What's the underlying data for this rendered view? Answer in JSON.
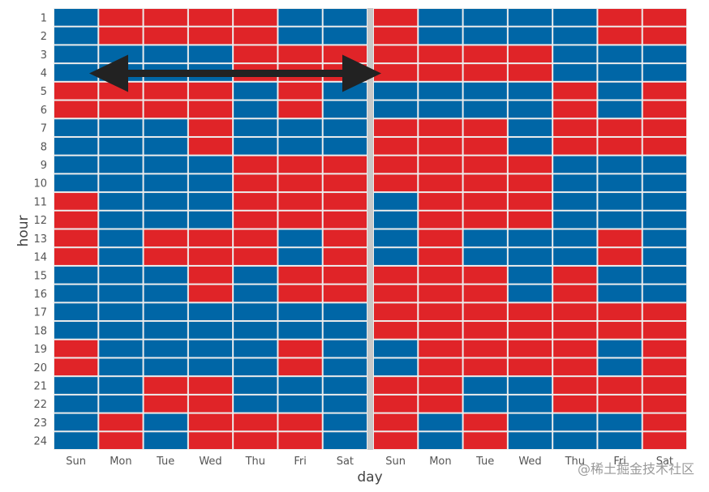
{
  "chart_data": {
    "type": "heatmap",
    "title": "",
    "xlabel": "day",
    "ylabel": "hour",
    "x_tick_labels": [
      "Sun",
      "Mon",
      "Tue",
      "Wed",
      "Thu",
      "Fri",
      "Sat",
      "Sun",
      "Mon",
      "Tue",
      "Wed",
      "Thu",
      "Fri",
      "Sat"
    ],
    "y_tick_labels": [
      "1",
      "2",
      "3",
      "4",
      "5",
      "6",
      "7",
      "8",
      "9",
      "10",
      "11",
      "12",
      "13",
      "14",
      "15",
      "16",
      "17",
      "18",
      "19",
      "20",
      "21",
      "22",
      "23",
      "24"
    ],
    "value_encoding": {
      "0": "blue",
      "1": "red"
    },
    "colors": {
      "0": "#0066a6",
      "1": "#e02428"
    },
    "separator_after_column": 7,
    "separator_color": "#c8c8c8",
    "grid_color": "#ececec",
    "rows": [
      [
        0,
        1,
        1,
        1,
        1,
        0,
        0,
        1,
        0,
        0,
        0,
        0,
        1,
        1
      ],
      [
        0,
        1,
        1,
        1,
        1,
        0,
        0,
        1,
        0,
        0,
        0,
        0,
        1,
        1
      ],
      [
        0,
        0,
        0,
        0,
        1,
        1,
        1,
        1,
        1,
        1,
        1,
        0,
        0,
        0
      ],
      [
        0,
        0,
        0,
        0,
        1,
        1,
        1,
        1,
        1,
        1,
        1,
        0,
        0,
        0
      ],
      [
        1,
        1,
        1,
        1,
        0,
        1,
        0,
        0,
        0,
        0,
        0,
        1,
        0,
        1
      ],
      [
        1,
        1,
        1,
        1,
        0,
        1,
        0,
        0,
        0,
        0,
        0,
        1,
        0,
        1
      ],
      [
        0,
        0,
        0,
        1,
        0,
        0,
        0,
        1,
        1,
        1,
        0,
        1,
        1,
        1
      ],
      [
        0,
        0,
        0,
        1,
        0,
        0,
        0,
        1,
        1,
        1,
        0,
        1,
        1,
        1
      ],
      [
        0,
        0,
        0,
        0,
        1,
        1,
        1,
        1,
        1,
        1,
        1,
        0,
        0,
        0
      ],
      [
        0,
        0,
        0,
        0,
        1,
        1,
        1,
        1,
        1,
        1,
        1,
        0,
        0,
        0
      ],
      [
        1,
        0,
        0,
        0,
        1,
        1,
        1,
        0,
        1,
        1,
        1,
        0,
        0,
        0
      ],
      [
        1,
        0,
        0,
        0,
        1,
        1,
        1,
        0,
        1,
        1,
        1,
        0,
        0,
        0
      ],
      [
        1,
        0,
        1,
        1,
        1,
        0,
        1,
        0,
        1,
        0,
        0,
        0,
        1,
        0
      ],
      [
        1,
        0,
        1,
        1,
        1,
        0,
        1,
        0,
        1,
        0,
        0,
        0,
        1,
        0
      ],
      [
        0,
        0,
        0,
        1,
        0,
        1,
        1,
        1,
        1,
        1,
        0,
        1,
        0,
        0
      ],
      [
        0,
        0,
        0,
        1,
        0,
        1,
        1,
        1,
        1,
        1,
        0,
        1,
        0,
        0
      ],
      [
        0,
        0,
        0,
        0,
        0,
        0,
        0,
        1,
        1,
        1,
        1,
        1,
        1,
        1
      ],
      [
        0,
        0,
        0,
        0,
        0,
        0,
        0,
        1,
        1,
        1,
        1,
        1,
        1,
        1
      ],
      [
        1,
        0,
        0,
        0,
        0,
        1,
        0,
        0,
        1,
        1,
        1,
        1,
        0,
        1
      ],
      [
        1,
        0,
        0,
        0,
        0,
        1,
        0,
        0,
        1,
        1,
        1,
        1,
        0,
        1
      ],
      [
        0,
        0,
        1,
        1,
        0,
        0,
        0,
        1,
        1,
        0,
        0,
        1,
        1,
        1
      ],
      [
        0,
        0,
        1,
        1,
        0,
        0,
        0,
        1,
        1,
        0,
        0,
        1,
        1,
        1
      ],
      [
        0,
        1,
        0,
        1,
        1,
        1,
        0,
        1,
        0,
        1,
        0,
        0,
        0,
        1
      ],
      [
        0,
        1,
        0,
        1,
        1,
        1,
        0,
        1,
        0,
        1,
        0,
        0,
        0,
        1
      ]
    ],
    "annotation": {
      "type": "double-arrow",
      "row": 4,
      "from_column": "Sun",
      "to_column": "Sat",
      "color": "#222222"
    }
  },
  "watermark": "@稀土掘金技术社区"
}
